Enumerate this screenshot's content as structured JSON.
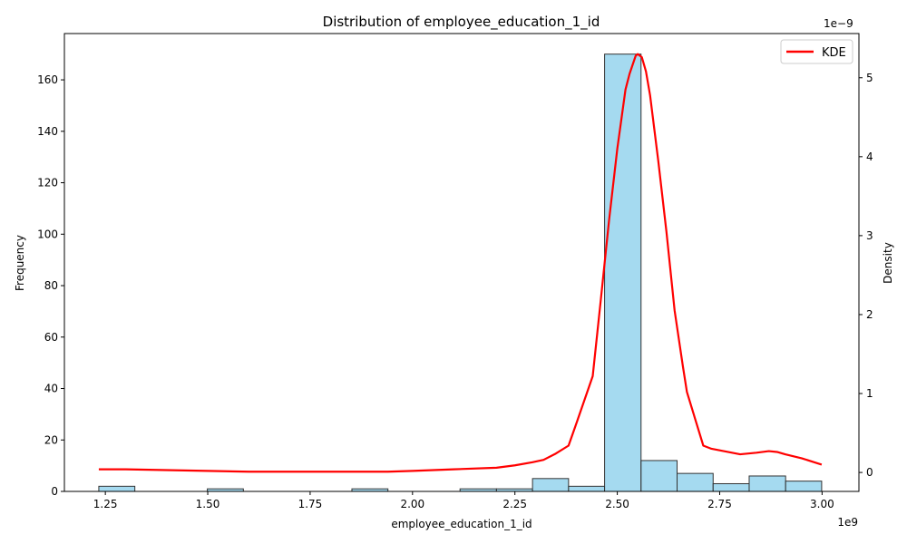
{
  "chart_data": {
    "type": "bar",
    "title": "Distribution of employee_education_1_id",
    "xlabel": "employee_education_1_id",
    "ylabel": "Frequency",
    "y2label": "Density",
    "x_offset_label": "1e9",
    "y2_offset_label": "1e−9",
    "xlim": [
      1.15,
      3.09
    ],
    "ylim": [
      0,
      178
    ],
    "y2lim": [
      -0.24,
      5.56
    ],
    "x_ticks": [
      1.25,
      1.5,
      1.75,
      2.0,
      2.25,
      2.5,
      2.75,
      3.0
    ],
    "x_tick_labels": [
      "1.25",
      "1.50",
      "1.75",
      "2.00",
      "2.25",
      "2.50",
      "2.75",
      "3.00"
    ],
    "y_ticks": [
      0,
      20,
      40,
      60,
      80,
      100,
      120,
      140,
      160
    ],
    "y_tick_labels": [
      "0",
      "20",
      "40",
      "60",
      "80",
      "100",
      "120",
      "140",
      "160"
    ],
    "y2_ticks": [
      0,
      1,
      2,
      3,
      4,
      5
    ],
    "y2_tick_labels": [
      "0",
      "1",
      "2",
      "3",
      "4",
      "5"
    ],
    "histogram": {
      "name": "",
      "color": "#87CEEB",
      "edge_color": "#333333",
      "bins": [
        {
          "start": 1.234,
          "end": 1.322,
          "count": 2
        },
        {
          "start": 1.322,
          "end": 1.41,
          "count": 0
        },
        {
          "start": 1.41,
          "end": 1.499,
          "count": 0
        },
        {
          "start": 1.499,
          "end": 1.587,
          "count": 1
        },
        {
          "start": 1.587,
          "end": 1.675,
          "count": 0
        },
        {
          "start": 1.675,
          "end": 1.763,
          "count": 0
        },
        {
          "start": 1.763,
          "end": 1.852,
          "count": 0
        },
        {
          "start": 1.852,
          "end": 1.94,
          "count": 1
        },
        {
          "start": 1.94,
          "end": 2.028,
          "count": 0
        },
        {
          "start": 2.028,
          "end": 2.116,
          "count": 0
        },
        {
          "start": 2.116,
          "end": 2.205,
          "count": 1
        },
        {
          "start": 2.205,
          "end": 2.293,
          "count": 1
        },
        {
          "start": 2.293,
          "end": 2.381,
          "count": 5
        },
        {
          "start": 2.381,
          "end": 2.469,
          "count": 2
        },
        {
          "start": 2.469,
          "end": 2.558,
          "count": 170
        },
        {
          "start": 2.558,
          "end": 2.646,
          "count": 12
        },
        {
          "start": 2.646,
          "end": 2.734,
          "count": 7
        },
        {
          "start": 2.734,
          "end": 2.822,
          "count": 3
        },
        {
          "start": 2.822,
          "end": 2.911,
          "count": 6
        },
        {
          "start": 2.911,
          "end": 2.999,
          "count": 4
        }
      ]
    },
    "kde": {
      "name": "KDE",
      "color": "#FF0000",
      "x": [
        1.234,
        1.3,
        1.4,
        1.5,
        1.6,
        1.7,
        1.8,
        1.9,
        1.94,
        2.0,
        2.1,
        2.205,
        2.25,
        2.293,
        2.32,
        2.35,
        2.381,
        2.4,
        2.42,
        2.44,
        2.46,
        2.48,
        2.5,
        2.52,
        2.53,
        2.545,
        2.55,
        2.56,
        2.57,
        2.58,
        2.6,
        2.62,
        2.64,
        2.66,
        2.67,
        2.69,
        2.71,
        2.73,
        2.76,
        2.8,
        2.84,
        2.87,
        2.89,
        2.91,
        2.95,
        2.999
      ],
      "y": [
        0.04,
        0.04,
        0.03,
        0.02,
        0.01,
        0.01,
        0.01,
        0.01,
        0.01,
        0.02,
        0.04,
        0.06,
        0.09,
        0.13,
        0.16,
        0.24,
        0.34,
        0.62,
        0.92,
        1.22,
        2.2,
        3.2,
        4.1,
        4.85,
        5.05,
        5.28,
        5.3,
        5.26,
        5.08,
        4.78,
        3.95,
        3.05,
        2.05,
        1.35,
        1.02,
        0.68,
        0.34,
        0.3,
        0.27,
        0.23,
        0.25,
        0.27,
        0.26,
        0.23,
        0.18,
        0.1
      ]
    },
    "legend": {
      "position": "top-right",
      "entries": [
        "KDE"
      ]
    },
    "grid": false
  }
}
